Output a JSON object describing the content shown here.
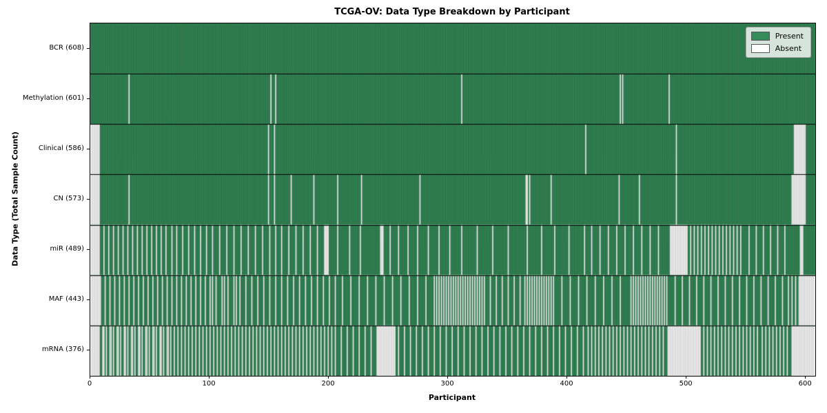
{
  "title": "TCGA-OV: Data Type Breakdown by Participant",
  "xlabel": "Participant",
  "ylabel": "Data Type (Total Sample Count)",
  "legend": {
    "present_label": "Present",
    "absent_label": "Absent"
  },
  "colors": {
    "present": "#358b59",
    "absent": "#ffffff",
    "row_separator": "#000000",
    "legend_border": "#a6a6a6"
  },
  "chart_data": {
    "type": "heatmap",
    "title": "TCGA-OV: Data Type Breakdown by Participant",
    "xlabel": "Participant",
    "ylabel": "Data Type (Total Sample Count)",
    "legend_entries": [
      "Present",
      "Absent"
    ],
    "legend_position": "upper right",
    "n_participants": 608,
    "xlim": [
      0,
      608
    ],
    "x_ticks": [
      0,
      100,
      200,
      300,
      400,
      500,
      600
    ],
    "rows": [
      {
        "label": "BCR (608)",
        "name": "BCR",
        "present_count": 608,
        "absent_count": 0,
        "absent": []
      },
      {
        "label": "Methylation (601)",
        "name": "Methylation",
        "present_count": 601,
        "absent_count": 7,
        "absent": [
          32,
          151,
          155,
          311,
          444,
          446,
          485
        ]
      },
      {
        "label": "Clinical (586)",
        "name": "Clinical",
        "present_count": 586,
        "absent_count": 22,
        "absent": [
          [
            0,
            7
          ],
          149,
          154,
          415,
          491,
          [
            590,
            599
          ]
        ]
      },
      {
        "label": "CN (573)",
        "name": "CN",
        "present_count": 573,
        "absent_count": 35,
        "absent": [
          [
            0,
            7
          ],
          32,
          149,
          154,
          168,
          187,
          207,
          227,
          276,
          [
            365,
            366
          ],
          368,
          386,
          443,
          460,
          491,
          [
            588,
            599
          ]
        ]
      },
      {
        "label": "miR (489)",
        "name": "miR",
        "present_count": 489,
        "absent_count": 119,
        "absent": [
          [
            0,
            7
          ],
          11,
          15,
          19,
          23,
          27,
          31,
          35,
          39,
          43,
          47,
          51,
          55,
          59,
          63,
          68,
          72,
          77,
          82,
          87,
          92,
          97,
          102,
          108,
          114,
          120,
          126,
          132,
          138,
          144,
          150,
          155,
          160,
          166,
          172,
          178,
          184,
          190,
          [
            196,
            199
          ],
          207,
          217,
          226,
          [
            243,
            245
          ],
          251,
          258,
          266,
          274,
          283,
          292,
          301,
          311,
          324,
          337,
          350,
          366,
          378,
          389,
          401,
          414,
          420,
          427,
          434,
          441,
          448,
          455,
          462,
          469,
          476,
          [
            486,
            500
          ],
          503,
          506,
          509,
          512,
          515,
          518,
          521,
          524,
          527,
          530,
          533,
          536,
          539,
          542,
          545,
          552,
          558,
          564,
          570,
          576,
          582,
          [
            595,
            597
          ]
        ]
      },
      {
        "label": "MAF (443)",
        "name": "MAF",
        "present_count": 443,
        "absent_count": 165,
        "absent": [
          [
            0,
            8
          ],
          12,
          16,
          20,
          24,
          28,
          32,
          36,
          40,
          44,
          48,
          52,
          56,
          60,
          64,
          68,
          72,
          76,
          80,
          84,
          88,
          92,
          96,
          100,
          102,
          105,
          110,
          112,
          115,
          120,
          122,
          125,
          130,
          135,
          140,
          145,
          150,
          155,
          160,
          165,
          170,
          175,
          180,
          185,
          190,
          195,
          200,
          205,
          211,
          218,
          225,
          232,
          239,
          246,
          253,
          260,
          267,
          274,
          281,
          288,
          290,
          292,
          294,
          296,
          298,
          300,
          302,
          304,
          306,
          308,
          310,
          312,
          314,
          316,
          318,
          320,
          322,
          324,
          326,
          328,
          330,
          335,
          340,
          345,
          350,
          355,
          360,
          364,
          366,
          368,
          370,
          372,
          374,
          376,
          378,
          380,
          382,
          384,
          386,
          388,
          395,
          402,
          409,
          416,
          423,
          430,
          437,
          444,
          453,
          455,
          457,
          459,
          461,
          463,
          465,
          467,
          469,
          471,
          473,
          475,
          477,
          479,
          481,
          483,
          490,
          496,
          502,
          508,
          514,
          520,
          526,
          532,
          538,
          544,
          550,
          556,
          562,
          568,
          574,
          580,
          585,
          588,
          591,
          [
            594,
            607
          ]
        ]
      },
      {
        "label": "mRNA (376)",
        "name": "mRNA",
        "present_count": 376,
        "absent_count": 232,
        "absent": [
          [
            0,
            7
          ],
          10,
          11,
          13,
          16,
          17,
          19,
          22,
          23,
          25,
          28,
          29,
          31,
          34,
          35,
          37,
          40,
          41,
          43,
          46,
          47,
          49,
          52,
          53,
          55,
          58,
          59,
          61,
          64,
          65,
          67,
          70,
          73,
          76,
          79,
          82,
          85,
          88,
          91,
          94,
          97,
          100,
          103,
          106,
          109,
          112,
          115,
          118,
          121,
          124,
          127,
          130,
          133,
          136,
          139,
          142,
          145,
          148,
          151,
          154,
          157,
          160,
          163,
          166,
          169,
          172,
          175,
          178,
          181,
          184,
          187,
          190,
          193,
          196,
          199,
          202,
          205,
          210,
          215,
          220,
          225,
          230,
          235,
          [
            240,
            255
          ],
          258,
          263,
          268,
          273,
          278,
          283,
          288,
          293,
          298,
          303,
          308,
          313,
          318,
          323,
          328,
          333,
          338,
          343,
          348,
          353,
          358,
          363,
          368,
          373,
          378,
          383,
          388,
          393,
          398,
          403,
          408,
          413,
          417,
          420,
          423,
          426,
          429,
          432,
          435,
          438,
          441,
          444,
          447,
          450,
          453,
          456,
          459,
          462,
          465,
          468,
          471,
          474,
          477,
          480,
          [
            484,
            511
          ],
          514,
          517,
          520,
          523,
          526,
          529,
          532,
          535,
          538,
          541,
          544,
          547,
          550,
          553,
          556,
          559,
          563,
          566,
          569,
          572,
          575,
          578,
          581,
          584,
          [
            588,
            607
          ]
        ]
      }
    ]
  }
}
